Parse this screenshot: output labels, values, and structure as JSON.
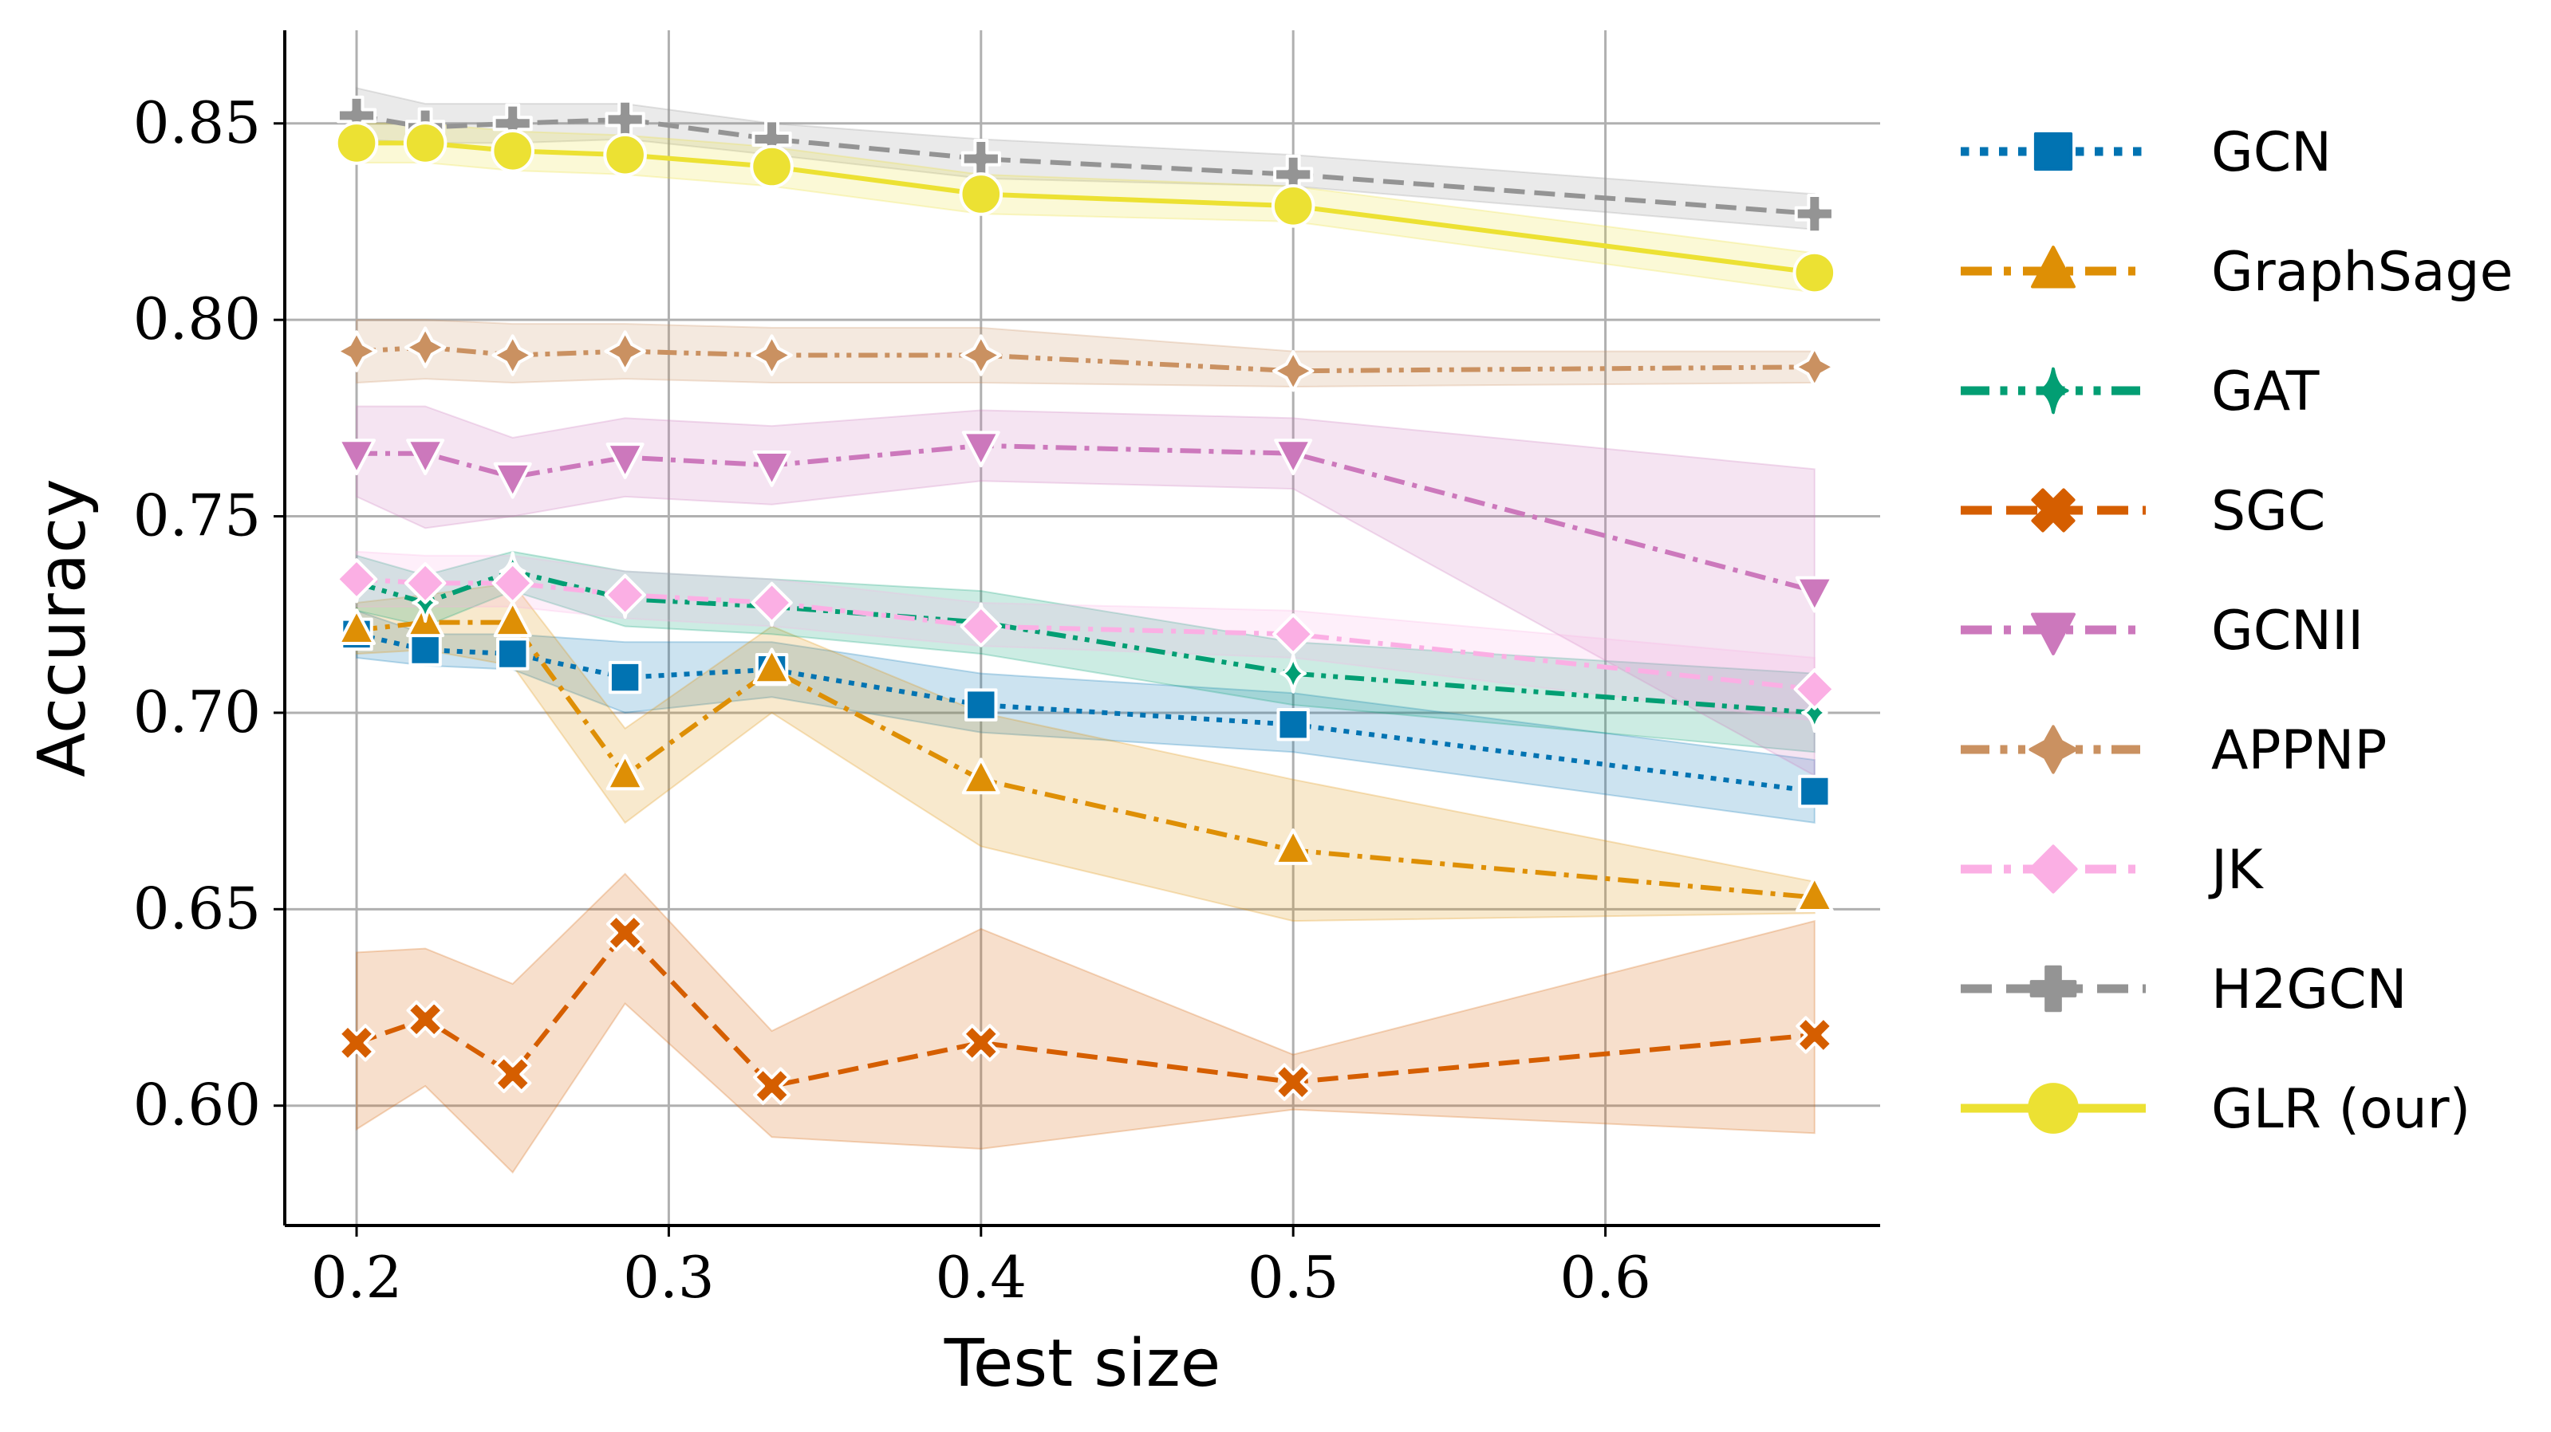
{
  "chart_data": {
    "type": "line",
    "xlabel": "Test size",
    "ylabel": "Accuracy",
    "xlim": [
      0.177,
      0.688
    ],
    "ylim": [
      0.5695,
      0.8737
    ],
    "xticks": [
      0.2,
      0.3,
      0.4,
      0.5,
      0.6
    ],
    "xtick_labels": [
      "0.2",
      "0.3",
      "0.4",
      "0.5",
      "0.6"
    ],
    "yticks": [
      0.6,
      0.65,
      0.7,
      0.75,
      0.8,
      0.85
    ],
    "ytick_labels": [
      "0.60",
      "0.65",
      "0.70",
      "0.75",
      "0.80",
      "0.85"
    ],
    "grid": true,
    "legend_position": "right-outside",
    "x": [
      0.2,
      0.222,
      0.25,
      0.286,
      0.333,
      0.4,
      0.5,
      0.667
    ],
    "series": [
      {
        "name": "GCN",
        "color": "#0173b2",
        "marker": "square",
        "dash": "dotted",
        "values": [
          0.72,
          0.716,
          0.715,
          0.709,
          0.711,
          0.702,
          0.697,
          0.68
        ],
        "lower": [
          0.714,
          0.712,
          0.711,
          0.7,
          0.704,
          0.695,
          0.69,
          0.672
        ],
        "upper": [
          0.726,
          0.72,
          0.72,
          0.718,
          0.718,
          0.71,
          0.705,
          0.688
        ]
      },
      {
        "name": "GraphSage",
        "color": "#de8f05",
        "marker": "triangle-up",
        "dash": "dashdot",
        "values": [
          0.721,
          0.723,
          0.723,
          0.684,
          0.711,
          0.683,
          0.665,
          0.653
        ],
        "lower": [
          0.715,
          0.716,
          0.712,
          0.672,
          0.7,
          0.666,
          0.647,
          0.649
        ],
        "upper": [
          0.728,
          0.73,
          0.733,
          0.696,
          0.722,
          0.7,
          0.683,
          0.657
        ]
      },
      {
        "name": "GAT",
        "color": "#029e73",
        "marker": "thin-diamond",
        "dash": "dashdotdot",
        "values": [
          0.733,
          0.728,
          0.736,
          0.729,
          0.727,
          0.723,
          0.71,
          0.7
        ],
        "lower": [
          0.726,
          0.722,
          0.731,
          0.722,
          0.72,
          0.715,
          0.702,
          0.69
        ],
        "upper": [
          0.74,
          0.735,
          0.741,
          0.736,
          0.734,
          0.731,
          0.718,
          0.71
        ]
      },
      {
        "name": "SGC",
        "color": "#d55e00",
        "marker": "x-filled",
        "dash": "dashed",
        "values": [
          0.616,
          0.622,
          0.608,
          0.644,
          0.605,
          0.616,
          0.606,
          0.618
        ],
        "lower": [
          0.594,
          0.605,
          0.583,
          0.626,
          0.592,
          0.589,
          0.599,
          0.593
        ],
        "upper": [
          0.639,
          0.64,
          0.631,
          0.659,
          0.619,
          0.645,
          0.613,
          0.647
        ]
      },
      {
        "name": "GCNII",
        "color": "#cc78bc",
        "marker": "triangle-down",
        "dash": "dashdot",
        "values": [
          0.766,
          0.766,
          0.76,
          0.765,
          0.763,
          0.768,
          0.766,
          0.731
        ],
        "lower": [
          0.755,
          0.747,
          0.75,
          0.755,
          0.753,
          0.759,
          0.757,
          0.684
        ],
        "upper": [
          0.778,
          0.778,
          0.77,
          0.775,
          0.773,
          0.777,
          0.775,
          0.762
        ]
      },
      {
        "name": "APPNP",
        "color": "#ca9161",
        "marker": "star",
        "dash": "dashdotdot",
        "values": [
          0.792,
          0.793,
          0.791,
          0.792,
          0.791,
          0.791,
          0.787,
          0.788
        ],
        "lower": [
          0.784,
          0.785,
          0.784,
          0.785,
          0.784,
          0.784,
          0.783,
          0.784
        ],
        "upper": [
          0.8,
          0.8,
          0.799,
          0.799,
          0.798,
          0.798,
          0.792,
          0.792
        ]
      },
      {
        "name": "JK",
        "color": "#fbafe4",
        "marker": "diamond",
        "dash": "dashdot",
        "values": [
          0.734,
          0.733,
          0.733,
          0.73,
          0.728,
          0.722,
          0.72,
          0.706
        ],
        "lower": [
          0.727,
          0.727,
          0.727,
          0.724,
          0.722,
          0.717,
          0.714,
          0.698
        ],
        "upper": [
          0.741,
          0.74,
          0.74,
          0.736,
          0.734,
          0.728,
          0.726,
          0.714
        ]
      },
      {
        "name": "H2GCN",
        "color": "#949494",
        "marker": "plus-filled",
        "dash": "dashed",
        "values": [
          0.852,
          0.849,
          0.85,
          0.851,
          0.846,
          0.841,
          0.837,
          0.827
        ],
        "lower": [
          0.846,
          0.845,
          0.845,
          0.846,
          0.842,
          0.836,
          0.834,
          0.823
        ],
        "upper": [
          0.859,
          0.855,
          0.855,
          0.855,
          0.85,
          0.846,
          0.842,
          0.832
        ]
      },
      {
        "name": "GLR (our)",
        "color": "#ece133",
        "marker": "circle",
        "dash": "solid",
        "values": [
          0.845,
          0.845,
          0.843,
          0.842,
          0.839,
          0.832,
          0.829,
          0.812
        ],
        "lower": [
          0.84,
          0.84,
          0.838,
          0.837,
          0.834,
          0.827,
          0.825,
          0.807
        ],
        "upper": [
          0.85,
          0.85,
          0.848,
          0.847,
          0.844,
          0.837,
          0.834,
          0.817
        ]
      }
    ]
  }
}
